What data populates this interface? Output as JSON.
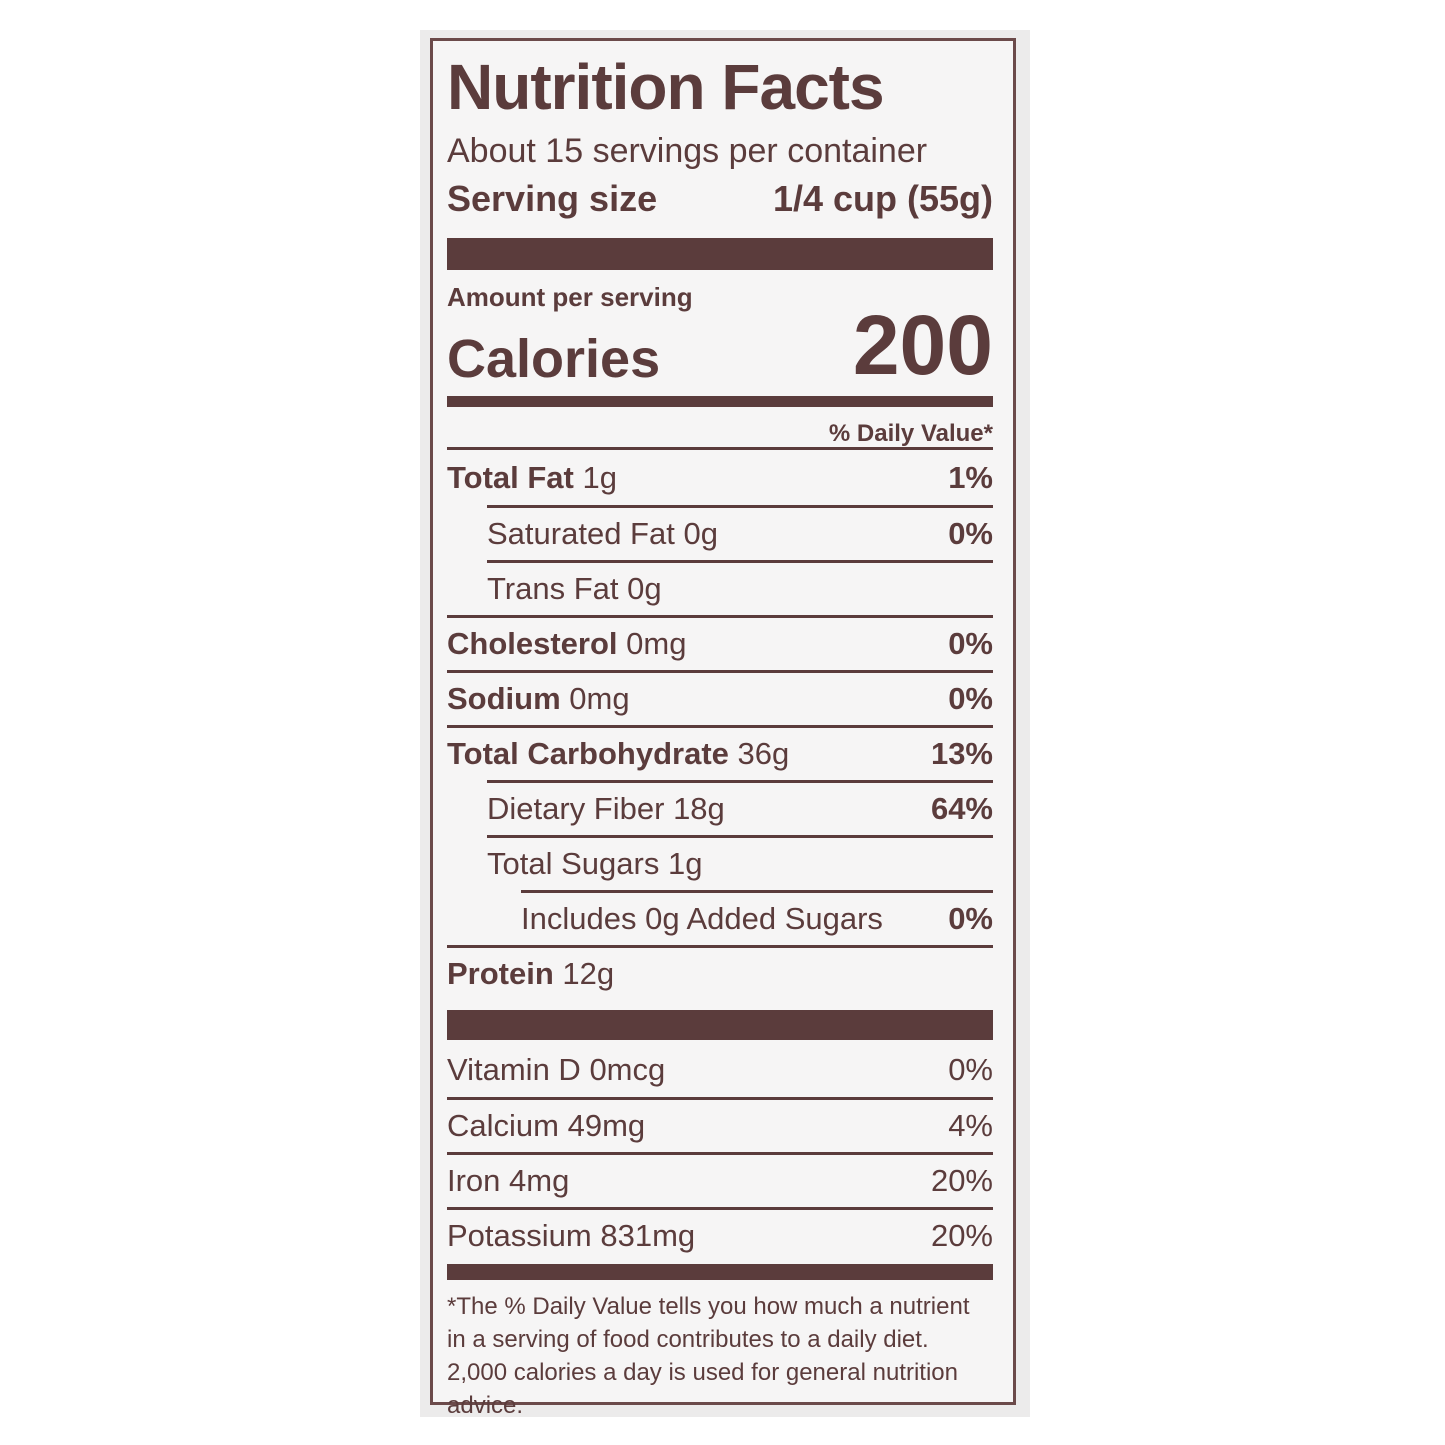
{
  "title": "Nutrition Facts",
  "servings": "About 15 servings per container",
  "serving_size": {
    "label": "Serving size",
    "value": "1/4 cup (55g)"
  },
  "amount_per_serving": "Amount per serving",
  "calories": {
    "label": "Calories",
    "value": "200"
  },
  "daily_value_header": "% Daily Value*",
  "nutrients": [
    {
      "name": "Total Fat",
      "amount": "1g",
      "dv": "1%"
    },
    {
      "name": "Saturated Fat",
      "amount": "0g",
      "dv": "0%"
    },
    {
      "name": "Trans Fat",
      "amount": "0g"
    },
    {
      "name": "Cholesterol",
      "amount": "0mg",
      "dv": "0%"
    },
    {
      "name": "Sodium",
      "amount": "0mg",
      "dv": "0%"
    },
    {
      "name": "Total Carbohydrate",
      "amount": "36g",
      "dv": "13%"
    },
    {
      "name": "Dietary Fiber",
      "amount": "18g",
      "dv": "64%"
    },
    {
      "name": "Total Sugars",
      "amount": "1g"
    },
    {
      "name": "Includes 0g Added Sugars",
      "dv": "0%"
    },
    {
      "name": "Protein",
      "amount": "12g"
    }
  ],
  "vitamins": [
    {
      "name": "Vitamin D",
      "amount": "0mcg",
      "dv": "0%"
    },
    {
      "name": "Calcium",
      "amount": "49mg",
      "dv": "4%"
    },
    {
      "name": "Iron",
      "amount": "4mg",
      "dv": "20%"
    },
    {
      "name": "Potassium",
      "amount": "831mg",
      "dv": "20%"
    }
  ],
  "footnote": "*The % Daily Value tells you how much a nutrient in a serving of food contributes to a daily diet. 2,000 calories a day is used for general nutrition advice."
}
